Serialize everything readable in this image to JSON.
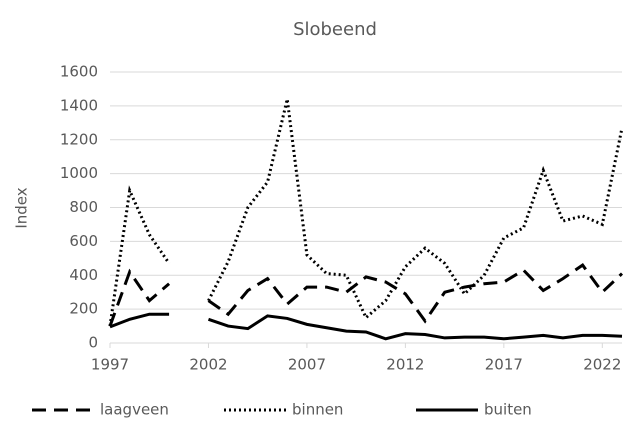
{
  "chart_data": {
    "type": "line",
    "title": "Slobeend",
    "y_label": "Index",
    "x": [
      1997,
      1998,
      1999,
      2000,
      2001,
      2002,
      2003,
      2004,
      2005,
      2006,
      2007,
      2008,
      2009,
      2010,
      2011,
      2012,
      2013,
      2014,
      2015,
      2016,
      2017,
      2018,
      2019,
      2020,
      2021,
      2022,
      2023
    ],
    "xlim": [
      1997,
      2023
    ],
    "xticks": [
      1997,
      2002,
      2007,
      2012,
      2017,
      2022
    ],
    "ylim": [
      0,
      1600
    ],
    "yticks": [
      0,
      200,
      400,
      600,
      800,
      1000,
      1200,
      1400,
      1600
    ],
    "grid": true,
    "legend": "bottom",
    "series": [
      {
        "name": "laagveen",
        "color": "#000000",
        "dash": "dashed",
        "values": [
          100,
          420,
          250,
          350,
          null,
          250,
          170,
          310,
          380,
          230,
          330,
          330,
          300,
          390,
          360,
          290,
          130,
          300,
          330,
          350,
          360,
          430,
          310,
          380,
          460,
          300,
          410
        ]
      },
      {
        "name": "binnen",
        "color": "#000000",
        "dash": "dotted",
        "values": [
          100,
          900,
          640,
          470,
          null,
          250,
          480,
          800,
          950,
          1440,
          520,
          410,
          400,
          150,
          250,
          450,
          560,
          470,
          290,
          400,
          620,
          680,
          1020,
          720,
          750,
          700,
          1270
        ]
      },
      {
        "name": "buiten",
        "color": "#000000",
        "dash": "solid",
        "values": [
          95,
          140,
          170,
          170,
          null,
          140,
          100,
          85,
          160,
          145,
          110,
          90,
          70,
          65,
          25,
          55,
          50,
          30,
          35,
          35,
          25,
          35,
          45,
          30,
          45,
          45,
          40
        ]
      }
    ]
  }
}
